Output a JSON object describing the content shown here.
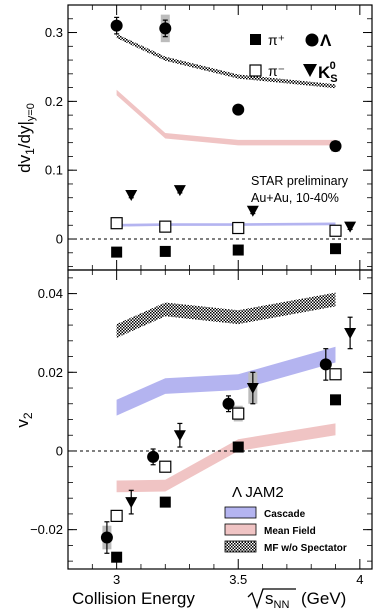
{
  "chart_data": [
    {
      "type": "scatter",
      "panel": "top",
      "ylabel": "dv₁/dy|y=0",
      "ylabel_main": "dv",
      "ylabel_sub1": "1",
      "ylabel_mid": "/dy|",
      "ylabel_sub2": "y=0",
      "xlim": [
        2.8,
        4.05
      ],
      "ylim": [
        -0.045,
        0.34
      ],
      "yticks": [
        0,
        0.1,
        0.2,
        0.3
      ],
      "ytick_labels": [
        "0",
        "0.1",
        "0.2",
        "0.3"
      ],
      "annotation_line1": "STAR preliminary",
      "annotation_line2": "Au+Au, 10-40%",
      "legend": {
        "pi_plus": "π⁺",
        "pi_minus": "π⁻",
        "lambda": "Λ",
        "k0s_main": "K",
        "k0s_sub": "S",
        "k0s_sup": "0"
      },
      "series": [
        {
          "name": "Λ",
          "marker": "circle-filled",
          "x": [
            3.0,
            3.2,
            3.5,
            3.9
          ],
          "y": [
            0.31,
            0.306,
            0.188,
            0.135
          ],
          "yerr": [
            0.012,
            0.012,
            0.006,
            0.006
          ],
          "syserr": [
            0.0,
            0.02,
            0.0,
            0.008
          ]
        },
        {
          "name": "K",
          "marker": "triangle-down-filled",
          "x": [
            3.06,
            3.26,
            3.56,
            3.96
          ],
          "y": [
            0.064,
            0.071,
            0.041,
            0.018
          ],
          "yerr": [
            0.004,
            0.004,
            0.004,
            0.004
          ]
        },
        {
          "name": "π⁺",
          "marker": "square-filled",
          "x": [
            3.0,
            3.2,
            3.5,
            3.9
          ],
          "y": [
            -0.019,
            -0.018,
            -0.016,
            -0.014
          ]
        },
        {
          "name": "π⁻",
          "marker": "square-open",
          "x": [
            3.0,
            3.2,
            3.5,
            3.9
          ],
          "y": [
            0.023,
            0.018,
            0.016,
            0.012
          ],
          "syserr": [
            0.004,
            0.003,
            0.003,
            0.004
          ]
        }
      ],
      "bands": [
        {
          "style": "cascade",
          "color": "#b4b4f0",
          "x": [
            3.0,
            3.2,
            3.5,
            3.9
          ],
          "y": [
            0.02,
            0.021,
            0.021,
            0.022
          ],
          "width": 0.004
        },
        {
          "style": "meanfield",
          "color": "#f0c4c4",
          "x": [
            3.0,
            3.2,
            3.5,
            3.9
          ],
          "y": [
            0.213,
            0.15,
            0.14,
            0.14
          ],
          "width": 0.008
        },
        {
          "style": "spectator",
          "color": "#000000",
          "x": [
            3.0,
            3.2,
            3.5,
            3.9
          ],
          "y": [
            0.295,
            0.262,
            0.236,
            0.222
          ],
          "width": 0.006
        }
      ]
    },
    {
      "type": "scatter",
      "panel": "bottom",
      "ylabel": "v₂",
      "ylabel_main": "v",
      "ylabel_sub": "2",
      "xlabel": "Collision Energy",
      "xlabel_sqrt": "s",
      "xlabel_sub": "NN",
      "xlabel_unit": "(GeV)",
      "xlim": [
        2.8,
        4.05
      ],
      "ylim": [
        -0.03,
        0.046
      ],
      "xticks": [
        3,
        3.5,
        4
      ],
      "xtick_labels": [
        "3",
        "3.5",
        "4"
      ],
      "yticks": [
        -0.02,
        0,
        0.02,
        0.04
      ],
      "ytick_labels": [
        "−0.02",
        "0",
        "0.02",
        "0.04"
      ],
      "legend_title": "Λ JAM2",
      "legend": [
        "Cascade",
        "Mean Field",
        "MF w/o Spectator"
      ],
      "series": [
        {
          "name": "Λ",
          "marker": "circle-filled",
          "x": [
            2.96,
            3.15,
            3.46,
            3.86
          ],
          "y": [
            -0.022,
            -0.0015,
            0.012,
            0.022
          ],
          "yerr": [
            0.004,
            0.002,
            0.002,
            0.004
          ],
          "syserr": [
            0.003,
            0.0,
            0.0,
            0.0
          ]
        },
        {
          "name": "K",
          "marker": "triangle-down-filled",
          "x": [
            3.06,
            3.26,
            3.56,
            3.96
          ],
          "y": [
            -0.013,
            0.004,
            0.016,
            0.03
          ],
          "yerr": [
            0.003,
            0.003,
            0.004,
            0.004
          ],
          "syserr": [
            0.0,
            0.0,
            0.004,
            0.0
          ]
        },
        {
          "name": "π⁺",
          "marker": "square-filled",
          "x": [
            3.0,
            3.2,
            3.5,
            3.9
          ],
          "y": [
            -0.027,
            -0.013,
            0.001,
            0.013
          ]
        },
        {
          "name": "π⁻",
          "marker": "square-open",
          "x": [
            3.0,
            3.2,
            3.5,
            3.9
          ],
          "y": [
            -0.0165,
            -0.004,
            0.0095,
            0.0195
          ],
          "syserr": [
            0.0,
            0.0,
            0.002,
            0.0
          ]
        }
      ],
      "bands": [
        {
          "style": "cascade",
          "color": "#b4b4f0",
          "x": [
            3.0,
            3.2,
            3.5,
            3.9
          ],
          "y": [
            0.011,
            0.0165,
            0.0175,
            0.0245
          ],
          "width": 0.004
        },
        {
          "style": "meanfield",
          "color": "#f0c4c4",
          "x": [
            3.0,
            3.2,
            3.5,
            3.9
          ],
          "y": [
            -0.009,
            -0.0088,
            0.0015,
            0.0055
          ],
          "width": 0.003
        },
        {
          "style": "spectator",
          "color": "#000000",
          "x": [
            3.0,
            3.2,
            3.5,
            3.9
          ],
          "y": [
            0.0305,
            0.036,
            0.034,
            0.0385
          ],
          "width": 0.0035
        }
      ]
    }
  ]
}
